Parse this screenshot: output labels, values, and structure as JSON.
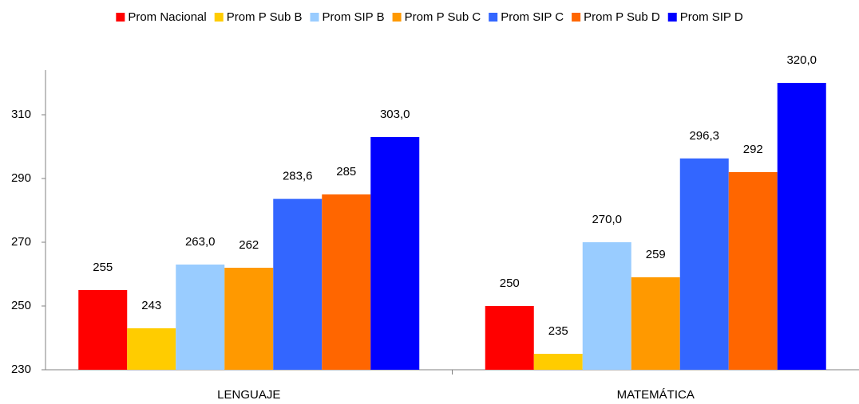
{
  "chart_data": {
    "type": "bar",
    "categories": [
      "LENGUAJE",
      "MATEMÁTICA"
    ],
    "series": [
      {
        "name": "Prom Nacional",
        "color": "#ff0000",
        "values": [
          255,
          250
        ],
        "value_labels": [
          "255",
          "250"
        ]
      },
      {
        "name": "Prom P Sub B",
        "color": "#ffcc00",
        "values": [
          243,
          235
        ],
        "value_labels": [
          "243",
          "235"
        ]
      },
      {
        "name": "Prom SIP B",
        "color": "#99ccff",
        "values": [
          263.0,
          270.0
        ],
        "value_labels": [
          "263,0",
          "270,0"
        ]
      },
      {
        "name": "Prom P Sub C",
        "color": "#ff9900",
        "values": [
          262,
          259
        ],
        "value_labels": [
          "262",
          "259"
        ]
      },
      {
        "name": "Prom SIP C",
        "color": "#3366ff",
        "values": [
          283.6,
          296.3
        ],
        "value_labels": [
          "283,6",
          "296,3"
        ]
      },
      {
        "name": "Prom P Sub D",
        "color": "#ff6600",
        "values": [
          285,
          292
        ],
        "value_labels": [
          "285",
          "292"
        ]
      },
      {
        "name": "Prom SIP D",
        "color": "#0000ff",
        "values": [
          303.0,
          320.0
        ],
        "value_labels": [
          "303,0",
          "320,0"
        ]
      }
    ],
    "ylim": [
      230,
      324
    ],
    "yticks": [
      230,
      250,
      270,
      290,
      310
    ],
    "grid": false,
    "legend": "top"
  }
}
